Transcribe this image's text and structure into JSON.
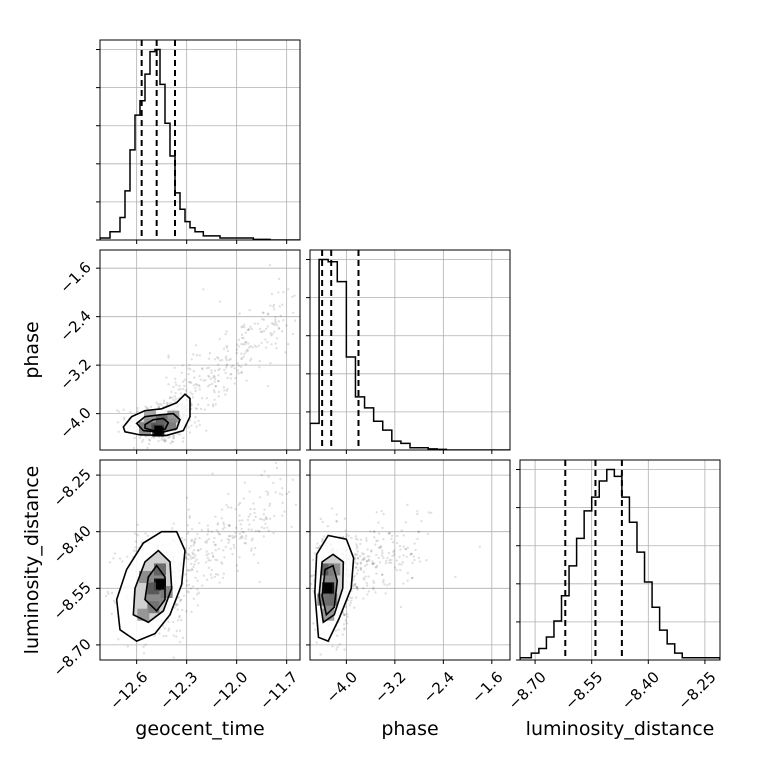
{
  "chart_data": {
    "type": "corner",
    "parameters": [
      "geocent_time",
      "phase",
      "luminosity_distance"
    ],
    "axis_labels": {
      "x": [
        "geocent_time",
        "phase",
        "luminosity_distance"
      ],
      "y": [
        "phase",
        "luminosity_distance"
      ]
    },
    "ranges": {
      "geocent_time": [
        -12.82,
        -11.62
      ],
      "phase": [
        -4.6,
        -1.3
      ],
      "luminosity_distance": [
        -8.74,
        -8.21
      ]
    },
    "ticks": {
      "geocent_time": [
        -12.6,
        -12.3,
        -12.0,
        -11.7
      ],
      "phase": [
        -4.0,
        -3.2,
        -2.4,
        -1.6
      ],
      "luminosity_distance": [
        -8.7,
        -8.55,
        -8.4,
        -8.25
      ]
    },
    "tick_labels": {
      "geocent_time": [
        "−12.6",
        "−12.3",
        "−12.0",
        "−11.7"
      ],
      "phase": [
        "−4.0",
        "−3.2",
        "−2.4",
        "−1.6"
      ],
      "luminosity_distance": [
        "−8.70",
        "−8.55",
        "−8.40",
        "−8.25"
      ]
    },
    "quantiles": {
      "geocent_time": [
        -12.57,
        -12.48,
        -12.37
      ],
      "phase": [
        -4.4,
        -4.25,
        -3.8
      ],
      "luminosity_distance": [
        -8.62,
        -8.54,
        -8.47
      ]
    },
    "histograms": {
      "geocent_time": {
        "edges": [
          -12.82,
          -12.76,
          -12.7,
          -12.67,
          -12.64,
          -12.61,
          -12.58,
          -12.55,
          -12.52,
          -12.49,
          -12.46,
          -12.43,
          -12.4,
          -12.37,
          -12.34,
          -12.31,
          -12.28,
          -12.25,
          -12.2,
          -12.1,
          -12.0,
          -11.9,
          -11.8,
          -11.62
        ],
        "counts": [
          0.01,
          0.04,
          0.11,
          0.24,
          0.44,
          0.61,
          0.68,
          0.81,
          0.92,
          0.93,
          0.76,
          0.57,
          0.41,
          0.23,
          0.15,
          0.09,
          0.06,
          0.04,
          0.02,
          0.01,
          0.01,
          0.003,
          0.0
        ]
      },
      "phase": {
        "edges": [
          -4.6,
          -4.45,
          -4.3,
          -4.15,
          -4.0,
          -3.85,
          -3.7,
          -3.55,
          -3.4,
          -3.25,
          -3.1,
          -2.95,
          -2.8,
          -2.65,
          -2.5,
          -2.35,
          -1.3
        ],
        "counts": [
          0.12,
          0.86,
          0.85,
          0.76,
          0.42,
          0.24,
          0.19,
          0.13,
          0.09,
          0.04,
          0.03,
          0.01,
          0.01,
          0.005,
          0.003,
          0.0
        ]
      },
      "luminosity_distance": {
        "edges": [
          -8.74,
          -8.71,
          -8.69,
          -8.67,
          -8.65,
          -8.63,
          -8.61,
          -8.59,
          -8.57,
          -8.55,
          -8.53,
          -8.51,
          -8.49,
          -8.47,
          -8.45,
          -8.43,
          -8.41,
          -8.39,
          -8.37,
          -8.35,
          -8.33,
          -8.31,
          -8.21
        ],
        "counts": [
          0.01,
          0.03,
          0.05,
          0.1,
          0.17,
          0.28,
          0.41,
          0.53,
          0.65,
          0.71,
          0.78,
          0.83,
          0.8,
          0.71,
          0.6,
          0.47,
          0.34,
          0.23,
          0.13,
          0.07,
          0.03,
          0.01
        ]
      }
    },
    "panels_2d": [
      {
        "x": "geocent_time",
        "y": "phase",
        "peak": [
          -12.47,
          -4.28
        ],
        "contours": [
          [
            [
              -12.68,
              -4.22
            ],
            [
              -12.63,
              -4.05
            ],
            [
              -12.55,
              -3.95
            ],
            [
              -12.45,
              -3.92
            ],
            [
              -12.36,
              -3.82
            ],
            [
              -12.31,
              -3.68
            ],
            [
              -12.28,
              -3.75
            ],
            [
              -12.28,
              -4.05
            ],
            [
              -12.32,
              -4.28
            ],
            [
              -12.42,
              -4.36
            ],
            [
              -12.58,
              -4.35
            ],
            [
              -12.67,
              -4.3
            ]
          ],
          [
            [
              -12.6,
              -4.16
            ],
            [
              -12.55,
              -4.05
            ],
            [
              -12.46,
              -4.02
            ],
            [
              -12.38,
              -4.0
            ],
            [
              -12.34,
              -4.1
            ],
            [
              -12.36,
              -4.25
            ],
            [
              -12.45,
              -4.31
            ],
            [
              -12.56,
              -4.28
            ]
          ],
          [
            [
              -12.55,
              -4.18
            ],
            [
              -12.5,
              -4.1
            ],
            [
              -12.44,
              -4.08
            ],
            [
              -12.41,
              -4.15
            ],
            [
              -12.43,
              -4.26
            ],
            [
              -12.5,
              -4.28
            ],
            [
              -12.55,
              -4.24
            ]
          ]
        ],
        "density_cells": [
          {
            "x": -12.47,
            "y": -4.28,
            "level": 1.0
          },
          {
            "x": -12.51,
            "y": -4.18,
            "level": 0.6
          },
          {
            "x": -12.45,
            "y": -4.12,
            "level": 0.55
          },
          {
            "x": -12.4,
            "y": -4.18,
            "level": 0.45
          },
          {
            "x": -12.55,
            "y": -4.24,
            "level": 0.4
          },
          {
            "x": -12.38,
            "y": -4.05,
            "level": 0.3
          },
          {
            "x": -12.52,
            "y": -4.05,
            "level": 0.25
          }
        ]
      },
      {
        "x": "geocent_time",
        "y": "luminosity_distance",
        "peak": [
          -12.46,
          -8.54
        ],
        "contours": [
          [
            [
              -12.7,
              -8.66
            ],
            [
              -12.72,
              -8.58
            ],
            [
              -12.66,
              -8.5
            ],
            [
              -12.56,
              -8.43
            ],
            [
              -12.45,
              -8.4
            ],
            [
              -12.36,
              -8.4
            ],
            [
              -12.31,
              -8.45
            ],
            [
              -12.33,
              -8.54
            ],
            [
              -12.4,
              -8.62
            ],
            [
              -12.49,
              -8.67
            ],
            [
              -12.6,
              -8.69
            ]
          ],
          [
            [
              -12.62,
              -8.62
            ],
            [
              -12.61,
              -8.55
            ],
            [
              -12.55,
              -8.48
            ],
            [
              -12.47,
              -8.45
            ],
            [
              -12.4,
              -8.48
            ],
            [
              -12.39,
              -8.55
            ],
            [
              -12.44,
              -8.61
            ],
            [
              -12.53,
              -8.64
            ]
          ],
          [
            [
              -12.55,
              -8.58
            ],
            [
              -12.53,
              -8.52
            ],
            [
              -12.48,
              -8.49
            ],
            [
              -12.43,
              -8.52
            ],
            [
              -12.43,
              -8.58
            ],
            [
              -12.48,
              -8.61
            ]
          ]
        ],
        "density_cells": [
          {
            "x": -12.46,
            "y": -8.54,
            "level": 1.0
          },
          {
            "x": -12.5,
            "y": -8.55,
            "level": 0.6
          },
          {
            "x": -12.46,
            "y": -8.5,
            "level": 0.55
          },
          {
            "x": -12.5,
            "y": -8.6,
            "level": 0.45
          },
          {
            "x": -12.42,
            "y": -8.56,
            "level": 0.4
          },
          {
            "x": -12.55,
            "y": -8.52,
            "level": 0.35
          },
          {
            "x": -12.56,
            "y": -8.62,
            "level": 0.3
          }
        ]
      },
      {
        "x": "phase",
        "y": "luminosity_distance",
        "peak": [
          -4.3,
          -8.55
        ],
        "contours": [
          [
            [
              -4.52,
              -8.56
            ],
            [
              -4.49,
              -8.46
            ],
            [
              -4.3,
              -8.41
            ],
            [
              -4.0,
              -8.42
            ],
            [
              -3.88,
              -8.47
            ],
            [
              -3.92,
              -8.55
            ],
            [
              -4.12,
              -8.63
            ],
            [
              -4.3,
              -8.69
            ],
            [
              -4.46,
              -8.68
            ]
          ],
          [
            [
              -4.45,
              -8.57
            ],
            [
              -4.4,
              -8.48
            ],
            [
              -4.22,
              -8.46
            ],
            [
              -4.05,
              -8.48
            ],
            [
              -4.06,
              -8.55
            ],
            [
              -4.2,
              -8.62
            ],
            [
              -4.38,
              -8.64
            ]
          ],
          [
            [
              -4.4,
              -8.57
            ],
            [
              -4.35,
              -8.5
            ],
            [
              -4.22,
              -8.49
            ],
            [
              -4.15,
              -8.53
            ],
            [
              -4.2,
              -8.6
            ],
            [
              -4.33,
              -8.62
            ]
          ]
        ],
        "density_cells": [
          {
            "x": -4.3,
            "y": -8.55,
            "level": 1.0
          },
          {
            "x": -4.32,
            "y": -8.5,
            "level": 0.6
          },
          {
            "x": -4.25,
            "y": -8.58,
            "level": 0.5
          },
          {
            "x": -4.38,
            "y": -8.58,
            "level": 0.45
          },
          {
            "x": -4.2,
            "y": -8.5,
            "level": 0.35
          },
          {
            "x": -4.3,
            "y": -8.62,
            "level": 0.3
          }
        ]
      }
    ],
    "scatter_clouds": [
      {
        "x": "geocent_time",
        "y": "phase",
        "core": {
          "x": -12.46,
          "y": -4.15,
          "sx": 0.1,
          "sy": 0.18,
          "n": 320
        },
        "tail": {
          "from": [
            -12.4,
            -3.95
          ],
          "to": [
            -11.68,
            -2.35
          ],
          "spread_y": 0.28,
          "n": 340
        },
        "outliers": [
          [
            -12.1,
            -2.15
          ],
          [
            -12.2,
            -1.95
          ],
          [
            -11.8,
            -1.55
          ],
          [
            -11.75,
            -2.0
          ]
        ]
      },
      {
        "x": "geocent_time",
        "y": "luminosity_distance",
        "core": {
          "x": -12.48,
          "y": -8.55,
          "sx": 0.11,
          "sy": 0.07,
          "n": 380
        },
        "tail": {
          "from": [
            -12.35,
            -8.48
          ],
          "to": [
            -11.7,
            -8.33
          ],
          "spread_y": 0.05,
          "n": 260
        },
        "outliers": [
          [
            -11.95,
            -8.27
          ],
          [
            -11.85,
            -8.25
          ],
          [
            -12.05,
            -8.3
          ],
          [
            -11.7,
            -8.3
          ]
        ]
      },
      {
        "x": "phase",
        "y": "luminosity_distance",
        "core": {
          "x": -4.25,
          "y": -8.54,
          "sx": 0.15,
          "sy": 0.07,
          "n": 380
        },
        "tail": {
          "from": [
            -4.0,
            -8.5
          ],
          "to": [
            -2.8,
            -8.42
          ],
          "spread_y": 0.05,
          "n": 220
        },
        "outliers": [
          [
            -2.2,
            -8.52
          ],
          [
            -1.8,
            -8.44
          ],
          [
            -2.6,
            -8.35
          ],
          [
            -3.1,
            -8.6
          ]
        ]
      }
    ]
  }
}
